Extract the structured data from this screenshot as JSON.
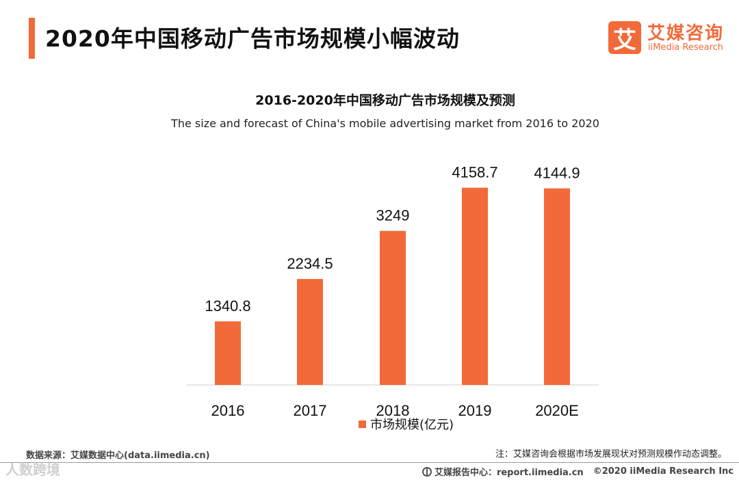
{
  "header": {
    "title": "2020年中国移动广告市场规模小幅波动",
    "logo_mark": "艾",
    "logo_cn": "艾媒咨询",
    "logo_en": "iiMedia Research"
  },
  "chart_data": {
    "type": "bar",
    "title": "2016-2020年中国移动广告市场规模及预测",
    "subtitle": "The size and forecast of China's mobile advertising market from 2016 to 2020",
    "categories": [
      "2016",
      "2017",
      "2018",
      "2019",
      "2020E"
    ],
    "series": [
      {
        "name": "市场规模(亿元)",
        "values": [
          1340.8,
          2234.5,
          3249,
          4158.7,
          4144.9
        ],
        "labels": [
          "1340.8",
          "2234.5",
          "3249",
          "4158.7",
          "4144.9"
        ],
        "color": "#f26a3a"
      }
    ],
    "xlabel": "",
    "ylabel": "",
    "ylim": [
      0,
      4700
    ],
    "grid": false,
    "legend": "bottom-center"
  },
  "footer": {
    "source": "数据来源：艾媒数据中心(data.iimedia.cn)",
    "note": "注：艾媒咨询会根据市场发展现状对预测规模作动态调整。",
    "site": "艾媒报告中心：report.iimedia.cn",
    "copyright": "©2020  iiMedia Research  Inc",
    "watermark": "人数跨境"
  },
  "colors": {
    "accent": "#f26a3a"
  }
}
